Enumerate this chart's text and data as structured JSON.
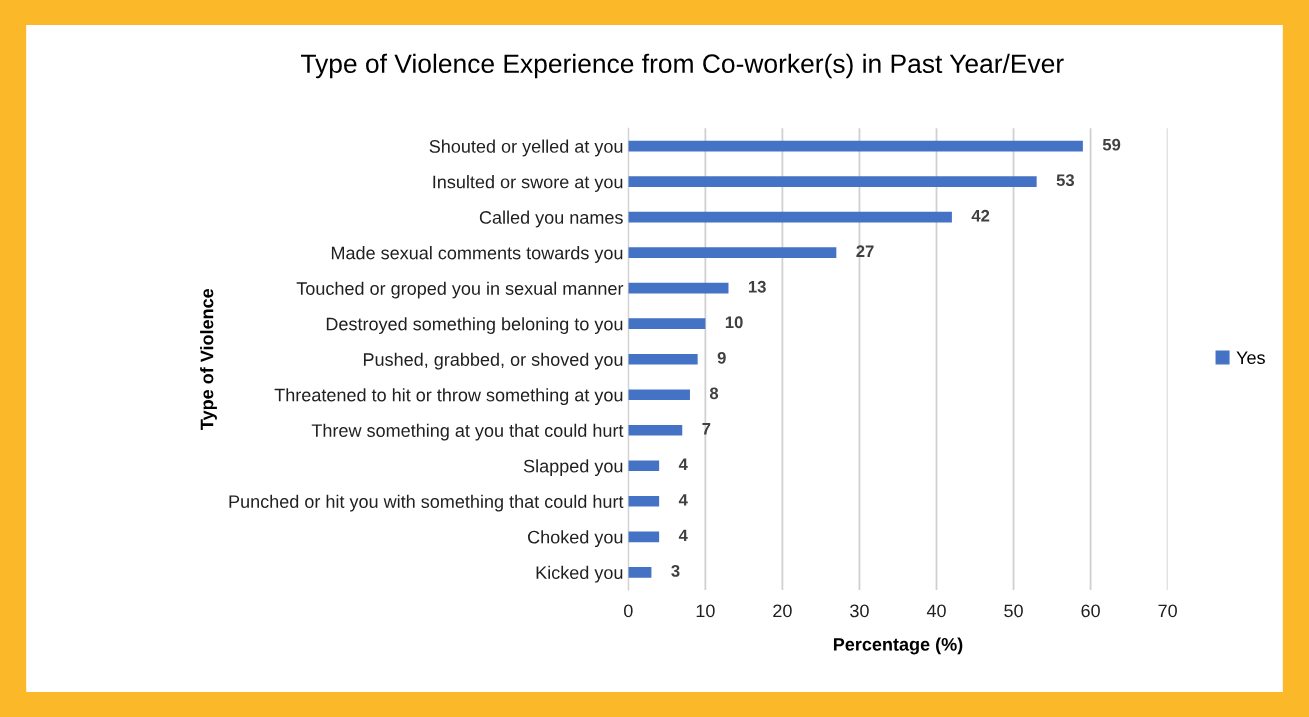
{
  "chart_data": {
    "type": "bar",
    "orientation": "horizontal",
    "title": "Type of Violence Experience from Co-worker(s) in Past Year/Ever",
    "xlabel": "Percentage (%)",
    "ylabel": "Type of Violence",
    "categories": [
      "Shouted or yelled at you",
      "Insulted or swore at you",
      "Called you names",
      "Made sexual comments towards you",
      "Touched or groped you in sexual manner",
      "Destroyed something beloning to you",
      "Pushed, grabbed, or shoved you",
      "Threatened to hit or throw something at you",
      "Threw something at you that could hurt",
      "Slapped you",
      "Punched or hit you with something that could hurt",
      "Choked you",
      "Kicked you"
    ],
    "series": [
      {
        "name": "Yes",
        "color": "#4472c4",
        "values": [
          59,
          53,
          42,
          27,
          13,
          10,
          9,
          8,
          7,
          4,
          4,
          4,
          3
        ]
      }
    ],
    "xlim": [
      0,
      70
    ],
    "xticks": [
      0,
      10,
      20,
      30,
      40,
      50,
      60,
      70
    ],
    "grid": "x",
    "legend": "right",
    "data_labels": true
  }
}
